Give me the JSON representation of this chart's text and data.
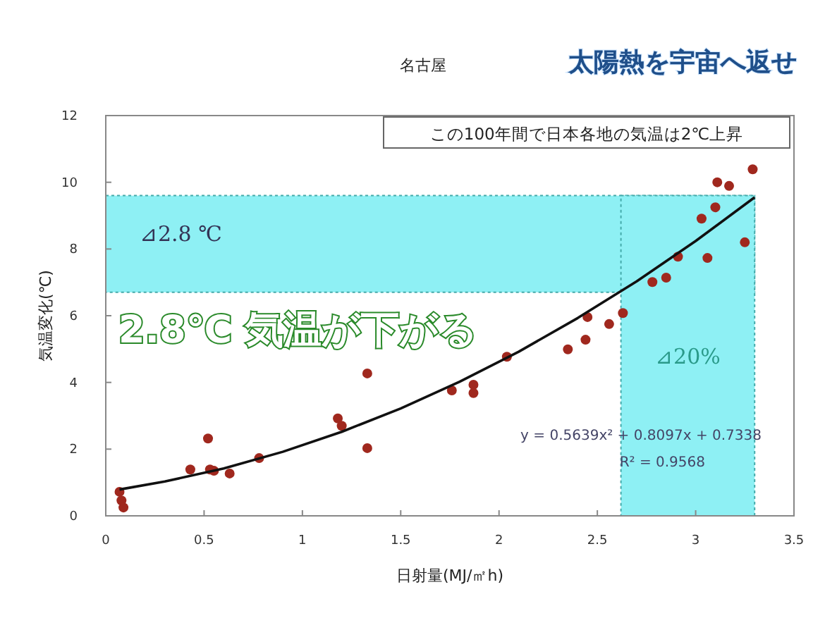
{
  "chart_data": {
    "type": "scatter",
    "title": "名古屋",
    "xlabel": "日射量(MJ/㎡h)",
    "ylabel": "気温変化(℃)",
    "xlim": [
      0,
      3.5
    ],
    "ylim": [
      0,
      12
    ],
    "xticks": [
      0,
      0.5,
      1,
      1.5,
      2,
      2.5,
      3,
      3.5
    ],
    "yticks": [
      0,
      2,
      4,
      6,
      8,
      10,
      12
    ],
    "grid": false,
    "marker": "circle",
    "series": [
      {
        "type": "scatter",
        "color": "#a0281e",
        "x": [
          0.07,
          0.08,
          0.09,
          0.43,
          0.52,
          0.53,
          0.55,
          0.63,
          0.78,
          1.18,
          1.2,
          1.33,
          1.33,
          1.76,
          1.87,
          1.87,
          2.04,
          2.35,
          2.44,
          2.45,
          2.56,
          2.63,
          2.78,
          2.85,
          2.91,
          3.03,
          3.06,
          3.1,
          3.11,
          3.17,
          3.25,
          3.29
        ],
        "values": [
          0.72,
          0.46,
          0.25,
          1.39,
          2.32,
          1.39,
          1.35,
          1.27,
          1.73,
          2.92,
          2.7,
          4.27,
          2.03,
          3.76,
          3.93,
          3.68,
          4.77,
          4.99,
          5.28,
          5.96,
          5.75,
          6.08,
          7.01,
          7.14,
          7.77,
          8.91,
          7.73,
          9.25,
          10.0,
          9.89,
          8.2,
          10.39
        ]
      },
      {
        "type": "line",
        "color": "#111111",
        "marker": "none",
        "line_style": "solid",
        "x": [
          0.07,
          0.3,
          0.6,
          0.9,
          1.2,
          1.5,
          1.8,
          2.1,
          2.4,
          2.7,
          3.0,
          3.3
        ],
        "values": [
          0.79,
          1.03,
          1.42,
          1.92,
          2.52,
          3.22,
          4.02,
          4.92,
          5.93,
          7.03,
          8.24,
          9.55
        ]
      }
    ],
    "bands": [
      {
        "axis": "y",
        "from": 6.7,
        "to": 9.6,
        "label": "⊿2.8 ℃",
        "color": "#8ef0f4"
      },
      {
        "axis": "x",
        "from": 2.62,
        "to": 3.3,
        "label": "⊿20%",
        "color": "#8ef0f4"
      }
    ],
    "annotations": [
      "この100年間で日本各地の気温は2℃上昇",
      "2.8℃ 気温が下がる",
      "y = 0.5639x² + 0.8097x + 0.7338",
      "R² = 0.9568",
      "太陽熱を宇宙へ返せ"
    ]
  }
}
